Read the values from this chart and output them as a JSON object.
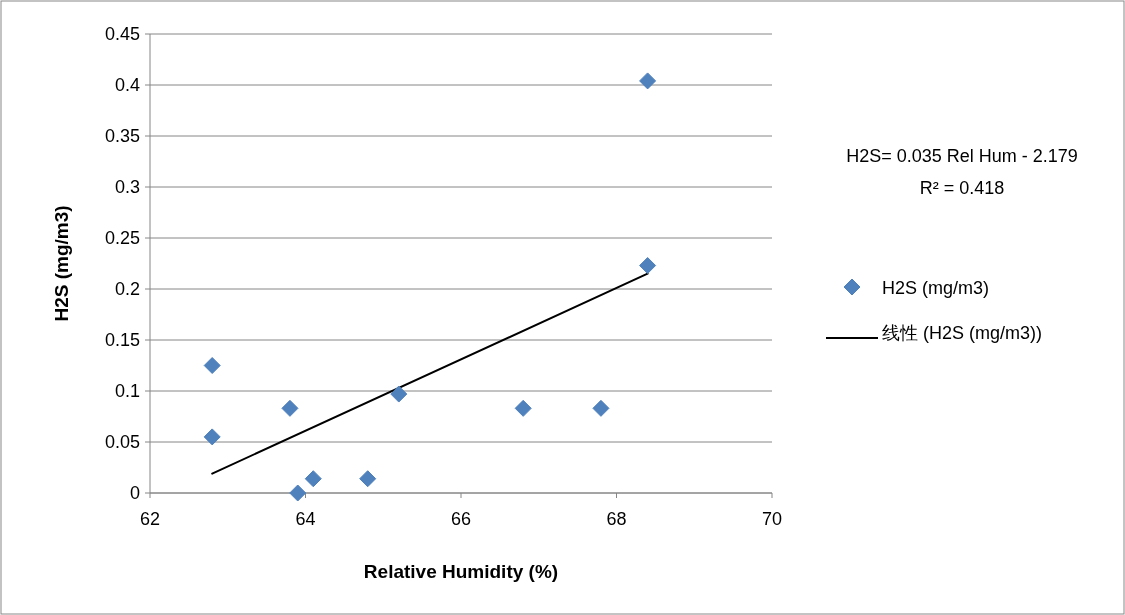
{
  "chart_data": {
    "type": "scatter",
    "xlabel": "Relative Humidity (%)",
    "ylabel": "H2S (mg/m3)",
    "xlim": [
      62,
      70
    ],
    "xticks": [
      62,
      64,
      66,
      68,
      70
    ],
    "ylim": [
      0,
      0.45
    ],
    "yticks": [
      0,
      0.05,
      0.1,
      0.15,
      0.2,
      0.25,
      0.3,
      0.35,
      0.4,
      0.45
    ],
    "grid": "y",
    "legend": "right",
    "annotations": [
      "H2S= 0.035 Rel Hum - 2.179",
      "R² = 0.418"
    ],
    "series": [
      {
        "name": "H2S (mg/m3)",
        "type": "scatter",
        "marker": "diamond",
        "color": "#4f81bd",
        "x": [
          62.8,
          62.8,
          63.8,
          63.9,
          64.1,
          64.8,
          65.2,
          66.8,
          67.8,
          68.4,
          68.4
        ],
        "values": [
          0.125,
          0.055,
          0.083,
          0,
          0.014,
          0.014,
          0.097,
          0.083,
          0.083,
          0.223,
          0.404
        ]
      },
      {
        "name": "线性 (H2S (mg/m3))",
        "type": "line",
        "marker": "none",
        "line_style": "solid",
        "color": "#000000",
        "x": [
          62.8,
          68.4
        ],
        "values": [
          0.019,
          0.215
        ]
      }
    ]
  }
}
